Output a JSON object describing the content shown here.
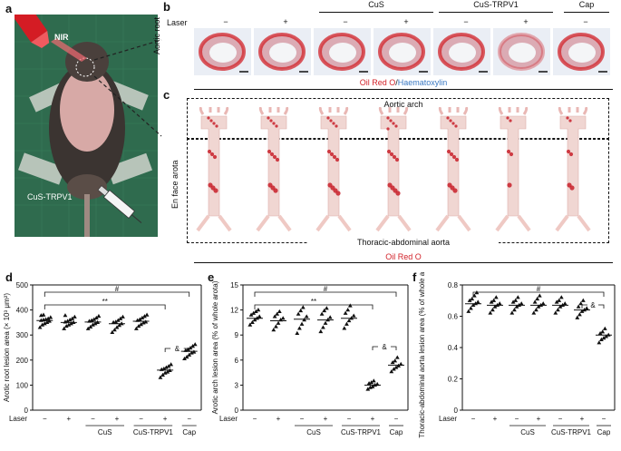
{
  "panels": {
    "a": {
      "label": "a",
      "nir": "NIR",
      "injection": "CuS-TRPV1"
    },
    "b": {
      "label": "b",
      "laser_row_label": "Laser",
      "laser_signs": [
        "−",
        "+",
        "−",
        "+",
        "−",
        "+",
        "−"
      ],
      "group_labels": [
        "CuS",
        "CuS-TRPV1",
        "Cap"
      ],
      "side_label": "Aortic root",
      "stain_red": "Oil Red O",
      "stain_sep": "/",
      "stain_blue": "Haematoxylin"
    },
    "c": {
      "label": "c",
      "top_label": "Aortic arch",
      "side_label": "En face arota",
      "bottom_label": "Thoracic-abdominal aorta",
      "stain": "Oil Red O"
    }
  },
  "colors": {
    "stain_red": "#d2232a",
    "stain_blue": "#3a78c2",
    "aorta_red": "#c8202a"
  },
  "x_axis": {
    "laser_label": "Laser",
    "laser_signs": [
      "−",
      "+",
      "−",
      "+",
      "−",
      "+",
      "−"
    ],
    "group_labels": [
      "CuS",
      "CuS-TRPV1",
      "Cap"
    ]
  },
  "chart_data": [
    {
      "panel": "d",
      "type": "scatter",
      "ylabel": "Arotic root lesion area (× 10³ μm²)",
      "ylim": [
        0,
        500
      ],
      "yticks": [
        "0",
        "100",
        "200",
        "300",
        "400",
        "500"
      ],
      "annotations": {
        "hash": "#",
        "double_star": "**",
        "amp": "&"
      },
      "groups": [
        {
          "laser": "−",
          "mean": 358,
          "values": [
            330,
            340,
            345,
            350,
            355,
            358,
            360,
            362,
            365,
            370,
            378,
            380
          ]
        },
        {
          "laser": "+",
          "mean": 350,
          "values": [
            325,
            335,
            340,
            345,
            350,
            352,
            355,
            360,
            365,
            372,
            378
          ]
        },
        {
          "laser": "−",
          "mean": 352,
          "values": [
            325,
            332,
            340,
            345,
            350,
            355,
            358,
            362,
            368,
            375
          ]
        },
        {
          "laser": "+",
          "mean": 345,
          "values": [
            310,
            320,
            330,
            338,
            345,
            350,
            352,
            358,
            365,
            372
          ]
        },
        {
          "laser": "−",
          "mean": 355,
          "values": [
            325,
            335,
            342,
            348,
            352,
            358,
            362,
            368,
            374,
            380
          ]
        },
        {
          "laser": "+",
          "mean": 160,
          "values": [
            130,
            140,
            148,
            152,
            158,
            162,
            165,
            170,
            175,
            182
          ]
        },
        {
          "laser": "−",
          "mean": 235,
          "values": [
            205,
            212,
            220,
            228,
            232,
            238,
            242,
            248,
            255,
            262
          ]
        }
      ]
    },
    {
      "panel": "e",
      "type": "scatter",
      "ylabel": "Arotic arch lesion area (% of whole arota)",
      "ylim": [
        0,
        15
      ],
      "yticks": [
        "0",
        "3",
        "6",
        "9",
        "12",
        "15"
      ],
      "annotations": {
        "hash": "#",
        "double_star": "**",
        "amp": "&"
      },
      "groups": [
        {
          "laser": "−",
          "mean": 11.0,
          "values": [
            10.2,
            10.5,
            10.8,
            11.0,
            11.2,
            11.4,
            11.6,
            11.8,
            12.0
          ]
        },
        {
          "laser": "+",
          "mean": 10.7,
          "values": [
            9.6,
            10.0,
            10.4,
            10.8,
            11.0,
            11.2,
            11.5,
            11.8
          ]
        },
        {
          "laser": "−",
          "mean": 10.9,
          "values": [
            9.2,
            9.8,
            10.3,
            10.8,
            11.2,
            11.5,
            11.9,
            12.3
          ]
        },
        {
          "laser": "+",
          "mean": 10.8,
          "values": [
            9.4,
            9.9,
            10.4,
            10.8,
            11.1,
            11.5,
            11.9,
            12.2
          ]
        },
        {
          "laser": "−",
          "mean": 11.0,
          "values": [
            9.8,
            10.3,
            10.7,
            11.0,
            11.3,
            11.6,
            12.0,
            12.5
          ]
        },
        {
          "laser": "+",
          "mean": 3.0,
          "values": [
            2.5,
            2.7,
            2.8,
            3.0,
            3.1,
            3.2,
            3.3,
            3.5
          ]
        },
        {
          "laser": "−",
          "mean": 5.4,
          "values": [
            4.6,
            4.9,
            5.1,
            5.3,
            5.5,
            5.7,
            5.9,
            6.3
          ]
        }
      ]
    },
    {
      "panel": "f",
      "type": "scatter",
      "ylabel": "Thoracic-abdominal aorta lesion area (% of whole aorta)",
      "ylim": [
        0,
        0.8
      ],
      "yticks": [
        "0",
        "0.2",
        "0.4",
        "0.6",
        "0.8"
      ],
      "annotations": {
        "hash": "#",
        "amp": "&"
      },
      "groups": [
        {
          "laser": "−",
          "mean": 0.68,
          "values": [
            0.63,
            0.65,
            0.67,
            0.68,
            0.69,
            0.7,
            0.71,
            0.73,
            0.75
          ]
        },
        {
          "laser": "+",
          "mean": 0.67,
          "values": [
            0.62,
            0.64,
            0.66,
            0.67,
            0.68,
            0.69,
            0.7,
            0.72
          ]
        },
        {
          "laser": "−",
          "mean": 0.67,
          "values": [
            0.62,
            0.64,
            0.66,
            0.67,
            0.68,
            0.69,
            0.7,
            0.72
          ]
        },
        {
          "laser": "+",
          "mean": 0.67,
          "values": [
            0.62,
            0.64,
            0.66,
            0.67,
            0.68,
            0.69,
            0.71,
            0.73
          ]
        },
        {
          "laser": "−",
          "mean": 0.67,
          "values": [
            0.62,
            0.64,
            0.66,
            0.67,
            0.68,
            0.69,
            0.7,
            0.72
          ]
        },
        {
          "laser": "+",
          "mean": 0.64,
          "values": [
            0.59,
            0.61,
            0.63,
            0.64,
            0.65,
            0.66,
            0.68,
            0.7
          ]
        },
        {
          "laser": "−",
          "mean": 0.48,
          "values": [
            0.43,
            0.45,
            0.46,
            0.47,
            0.48,
            0.49,
            0.5,
            0.52
          ]
        }
      ]
    }
  ]
}
